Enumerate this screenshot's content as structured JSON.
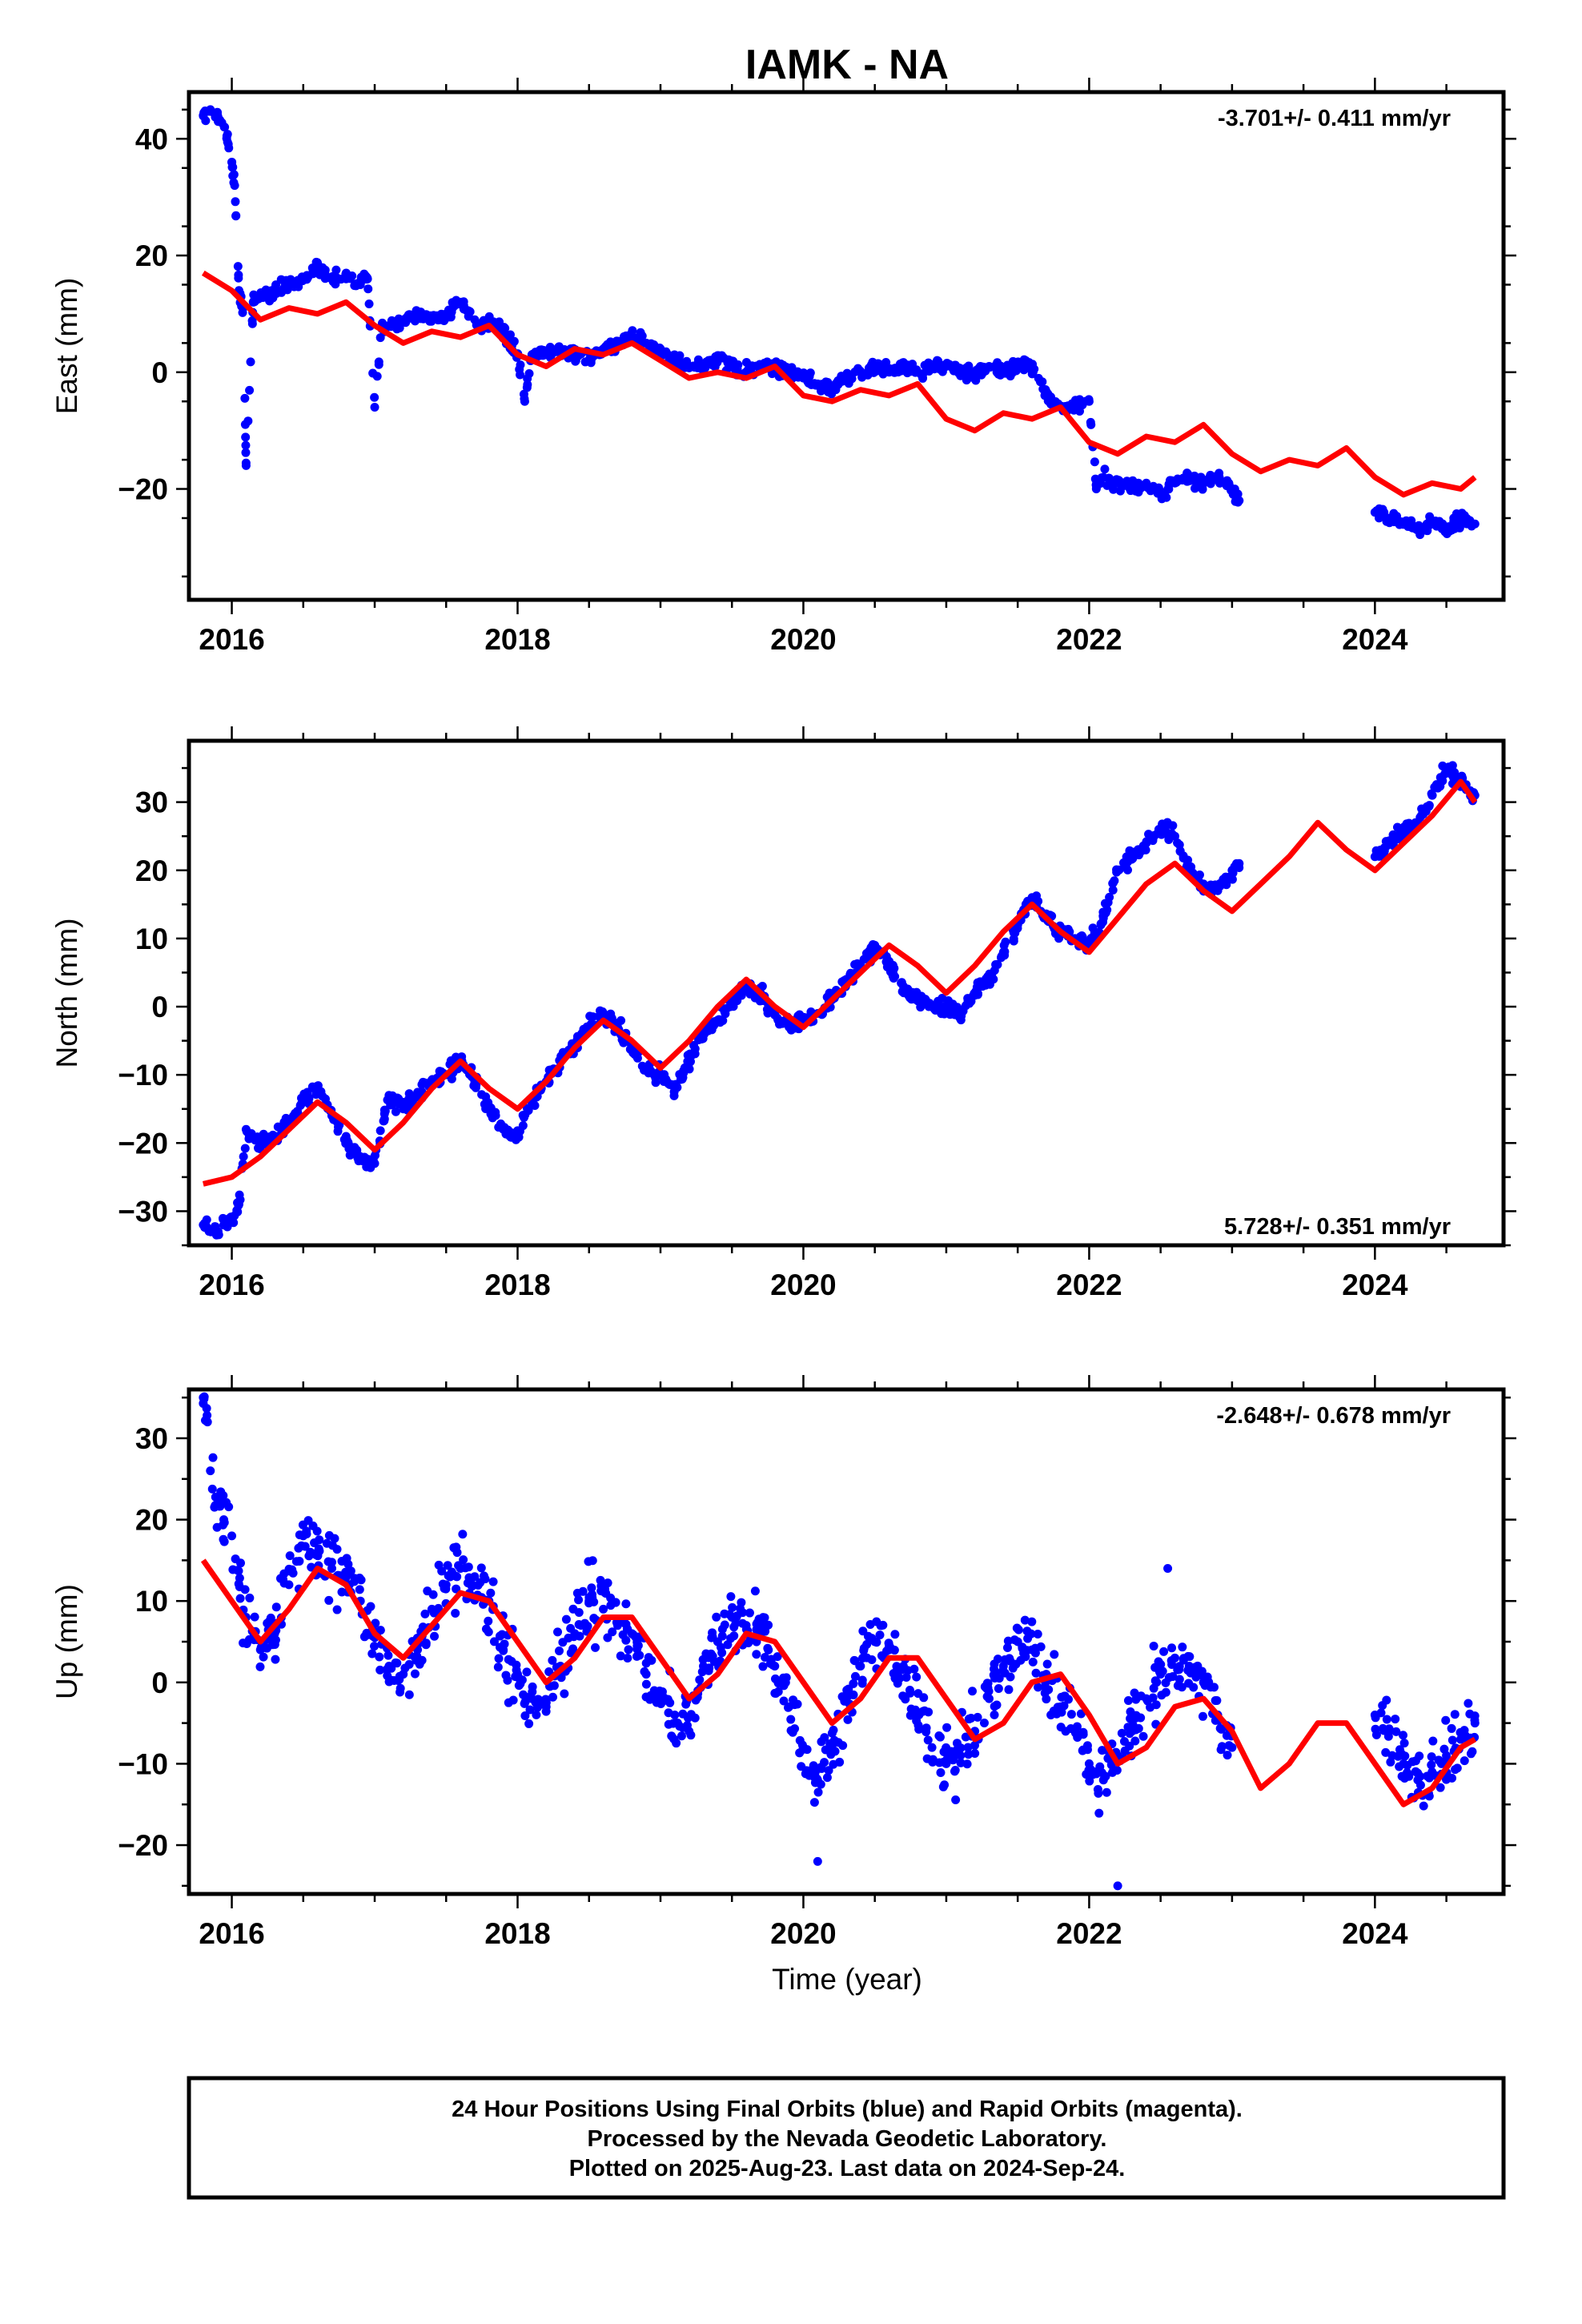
{
  "title": "IAMK - NA",
  "xlabel": "Time (year)",
  "footer": {
    "line1": "24 Hour Positions Using Final Orbits (blue) and Rapid Orbits (magenta).",
    "line2": "Processed by the Nevada Geodetic Laboratory.",
    "line3": "Plotted on 2025-Aug-23. Last data on 2024-Sep-24."
  },
  "colors": {
    "points": "#0000ff",
    "model": "#ff0000",
    "frame": "#000000"
  },
  "chart_data": [
    {
      "type": "scatter",
      "ylabel": "East (mm)",
      "rate": "-3.701+/- 0.411 mm/yr",
      "rate_position": "top-right",
      "xlim": [
        2015.7,
        2024.9
      ],
      "ylim": [
        -39,
        48
      ],
      "xticks": [
        "2016",
        "2018",
        "2020",
        "2022",
        "2024"
      ],
      "yticks": [
        "40",
        "20",
        "0",
        "−20"
      ],
      "series": [
        {
          "role": "observations",
          "marker": "dot",
          "x": [
            2015.8,
            2015.85,
            2015.9,
            2015.95,
            2016.0,
            2016.02,
            2016.05,
            2016.08,
            2016.1,
            2016.15,
            2016.2,
            2016.3,
            2016.4,
            2016.5,
            2016.6,
            2016.65,
            2016.7,
            2016.8,
            2016.9,
            2016.95,
            2017.0,
            2017.05,
            2017.1,
            2017.2,
            2017.3,
            2017.4,
            2017.5,
            2017.6,
            2017.7,
            2017.8,
            2017.9,
            2017.95,
            2018.0,
            2018.05,
            2018.1,
            2018.2,
            2018.3,
            2018.4,
            2018.5,
            2018.6,
            2018.7,
            2018.8,
            2018.9,
            2019.0,
            2019.05,
            2019.1,
            2019.2,
            2019.3,
            2019.4,
            2019.5,
            2019.6,
            2019.7,
            2019.8,
            2019.9,
            2020.0,
            2020.1,
            2020.2,
            2020.3,
            2020.4,
            2020.5,
            2020.6,
            2020.7,
            2020.8,
            2020.9,
            2021.0,
            2021.1,
            2021.2,
            2021.3,
            2021.4,
            2021.5,
            2021.6,
            2021.7,
            2021.8,
            2021.9,
            2022.0,
            2022.05,
            2022.1,
            2022.15,
            2022.2,
            2022.3,
            2022.4,
            2022.5,
            2022.6,
            2022.7,
            2022.8,
            2022.9,
            2022.95,
            2023.0,
            2023.05,
            2024.0,
            2024.1,
            2024.2,
            2024.3,
            2024.4,
            2024.5,
            2024.6,
            2024.7
          ],
          "y": [
            44,
            45,
            44,
            42,
            36,
            32,
            14,
            11,
            -16,
            12,
            13,
            14,
            15,
            16,
            18,
            17,
            16,
            16,
            15,
            16,
            -6,
            8,
            8,
            9,
            10,
            9,
            10,
            12,
            9,
            8,
            7,
            5,
            3,
            -5,
            3,
            3,
            4,
            3,
            2,
            4,
            5,
            6,
            5,
            4,
            3,
            2,
            1,
            1,
            2,
            1,
            0,
            1,
            1,
            0,
            -1,
            -2,
            -3,
            -1,
            0,
            1,
            0,
            1,
            0,
            1,
            1,
            0,
            0,
            1,
            0,
            1,
            1,
            -4,
            -6,
            -6,
            -5,
            -20,
            -18,
            -19,
            -19,
            -20,
            -19,
            -21,
            -19,
            -18,
            -19,
            -18,
            -19,
            -20,
            -22,
            -24,
            -25,
            -26,
            -27,
            -26,
            -27,
            -25,
            -26
          ]
        },
        {
          "role": "model",
          "marker": "line",
          "x": [
            2015.8,
            2016.0,
            2016.2,
            2016.4,
            2016.6,
            2016.8,
            2017.0,
            2017.2,
            2017.4,
            2017.6,
            2017.8,
            2018.0,
            2018.2,
            2018.4,
            2018.6,
            2018.8,
            2019.0,
            2019.2,
            2019.4,
            2019.6,
            2019.8,
            2020.0,
            2020.2,
            2020.4,
            2020.6,
            2020.8,
            2021.0,
            2021.2,
            2021.4,
            2021.6,
            2021.8,
            2022.0,
            2022.2,
            2022.4,
            2022.6,
            2022.8,
            2023.0,
            2023.2,
            2023.4,
            2023.6,
            2023.8,
            2024.0,
            2024.2,
            2024.4,
            2024.6,
            2024.7
          ],
          "y": [
            17,
            14,
            9,
            11,
            10,
            12,
            8,
            5,
            7,
            6,
            8,
            3,
            1,
            4,
            3,
            5,
            2,
            -1,
            0,
            -1,
            1,
            -4,
            -5,
            -3,
            -4,
            -2,
            -8,
            -10,
            -7,
            -8,
            -6,
            -12,
            -14,
            -11,
            -12,
            -9,
            -14,
            -17,
            -15,
            -16,
            -13,
            -18,
            -21,
            -19,
            -20,
            -18
          ]
        }
      ]
    },
    {
      "type": "scatter",
      "ylabel": "North (mm)",
      "rate": "5.728+/- 0.351 mm/yr",
      "rate_position": "bottom-right",
      "xlim": [
        2015.7,
        2024.9
      ],
      "ylim": [
        -35,
        39
      ],
      "xticks": [
        "2016",
        "2018",
        "2020",
        "2022",
        "2024"
      ],
      "yticks": [
        "30",
        "20",
        "10",
        "0",
        "−10",
        "−20",
        "−30"
      ],
      "series": [
        {
          "role": "observations",
          "marker": "dot",
          "x": [
            2015.8,
            2015.9,
            2016.0,
            2016.05,
            2016.1,
            2016.2,
            2016.3,
            2016.4,
            2016.5,
            2016.6,
            2016.7,
            2016.8,
            2016.9,
            2017.0,
            2017.1,
            2017.2,
            2017.3,
            2017.4,
            2017.5,
            2017.6,
            2017.7,
            2017.8,
            2017.9,
            2018.0,
            2018.1,
            2018.2,
            2018.3,
            2018.4,
            2018.5,
            2018.6,
            2018.7,
            2018.8,
            2018.9,
            2019.0,
            2019.1,
            2019.2,
            2019.3,
            2019.4,
            2019.5,
            2019.6,
            2019.7,
            2019.8,
            2019.9,
            2020.0,
            2020.1,
            2020.2,
            2020.3,
            2020.4,
            2020.5,
            2020.6,
            2020.7,
            2020.8,
            2020.9,
            2021.0,
            2021.1,
            2021.2,
            2021.3,
            2021.4,
            2021.5,
            2021.6,
            2021.7,
            2021.8,
            2021.9,
            2022.0,
            2022.1,
            2022.2,
            2022.3,
            2022.4,
            2022.5,
            2022.6,
            2022.7,
            2022.8,
            2022.9,
            2023.0,
            2023.05,
            2024.0,
            2024.1,
            2024.2,
            2024.3,
            2024.4,
            2024.5,
            2024.6,
            2024.7
          ],
          "y": [
            -32,
            -33,
            -31,
            -29,
            -18,
            -20,
            -19,
            -17,
            -14,
            -12,
            -16,
            -20,
            -22,
            -23,
            -13,
            -15,
            -13,
            -11,
            -10,
            -8,
            -11,
            -15,
            -18,
            -19,
            -14,
            -11,
            -8,
            -6,
            -3,
            -1,
            -3,
            -6,
            -9,
            -10,
            -12,
            -8,
            -4,
            -2,
            1,
            3,
            2,
            -1,
            -3,
            -2,
            -1,
            1,
            4,
            6,
            9,
            6,
            3,
            1,
            0,
            0,
            -1,
            2,
            4,
            8,
            12,
            16,
            13,
            11,
            10,
            9,
            13,
            20,
            22,
            24,
            26,
            25,
            20,
            18,
            17,
            20,
            21,
            22,
            24,
            26,
            27,
            31,
            35,
            33,
            31
          ],
          "note": "observations"
        },
        {
          "role": "model",
          "marker": "line",
          "x": [
            2015.8,
            2016.0,
            2016.2,
            2016.4,
            2016.6,
            2016.8,
            2017.0,
            2017.2,
            2017.4,
            2017.6,
            2017.8,
            2018.0,
            2018.2,
            2018.4,
            2018.6,
            2018.8,
            2019.0,
            2019.2,
            2019.4,
            2019.6,
            2019.8,
            2020.0,
            2020.2,
            2020.4,
            2020.6,
            2020.8,
            2021.0,
            2021.2,
            2021.4,
            2021.6,
            2021.8,
            2022.0,
            2022.2,
            2022.4,
            2022.6,
            2022.8,
            2023.0,
            2023.2,
            2023.4,
            2023.6,
            2023.8,
            2024.0,
            2024.2,
            2024.4,
            2024.6,
            2024.7
          ],
          "y": [
            -26,
            -25,
            -22,
            -18,
            -14,
            -17,
            -21,
            -17,
            -12,
            -8,
            -12,
            -15,
            -11,
            -6,
            -2,
            -5,
            -9,
            -5,
            0,
            4,
            0,
            -3,
            1,
            5,
            9,
            6,
            2,
            6,
            11,
            15,
            11,
            8,
            13,
            18,
            21,
            17,
            14,
            18,
            22,
            27,
            23,
            20,
            24,
            28,
            33,
            30
          ]
        }
      ]
    },
    {
      "type": "scatter",
      "ylabel": "Up (mm)",
      "rate": "-2.648+/- 0.678 mm/yr",
      "rate_position": "top-right",
      "xlim": [
        2015.7,
        2024.9
      ],
      "ylim": [
        -26,
        36
      ],
      "xticks": [
        "2016",
        "2018",
        "2020",
        "2022",
        "2024"
      ],
      "yticks": [
        "30",
        "20",
        "10",
        "0",
        "−10",
        "−20"
      ],
      "series": [
        {
          "role": "observations",
          "marker": "dot",
          "x": [
            2015.8,
            2015.85,
            2015.9,
            2016.0,
            2016.1,
            2016.2,
            2016.3,
            2016.4,
            2016.5,
            2016.6,
            2016.7,
            2016.8,
            2016.9,
            2017.0,
            2017.1,
            2017.2,
            2017.3,
            2017.4,
            2017.5,
            2017.6,
            2017.7,
            2017.8,
            2017.9,
            2018.0,
            2018.1,
            2018.2,
            2018.3,
            2018.4,
            2018.5,
            2018.6,
            2018.7,
            2018.8,
            2018.9,
            2019.0,
            2019.1,
            2019.2,
            2019.3,
            2019.4,
            2019.5,
            2019.6,
            2019.7,
            2019.8,
            2019.9,
            2020.0,
            2020.1,
            2020.2,
            2020.3,
            2020.4,
            2020.5,
            2020.6,
            2020.7,
            2020.8,
            2020.9,
            2021.0,
            2021.1,
            2021.2,
            2021.3,
            2021.4,
            2021.5,
            2021.6,
            2021.7,
            2021.8,
            2021.9,
            2022.0,
            2022.1,
            2022.2,
            2022.3,
            2022.4,
            2022.5,
            2022.6,
            2022.7,
            2022.8,
            2022.9,
            2023.0,
            2024.0,
            2024.1,
            2024.2,
            2024.3,
            2024.4,
            2024.5,
            2024.6,
            2024.7
          ],
          "y": [
            35,
            26,
            22,
            18,
            8,
            4,
            6,
            12,
            18,
            16,
            14,
            13,
            10,
            6,
            2,
            1,
            4,
            9,
            12,
            14,
            13,
            10,
            4,
            1,
            -2,
            -3,
            2,
            6,
            10,
            9,
            7,
            6,
            1,
            -2,
            -4,
            -6,
            2,
            5,
            8,
            7,
            6,
            2,
            -3,
            -8,
            -12,
            -8,
            -2,
            2,
            5,
            4,
            2,
            -4,
            -8,
            -10,
            -9,
            -6,
            -2,
            2,
            5,
            4,
            1,
            -3,
            -6,
            -10,
            -12,
            -9,
            -6,
            -2,
            1,
            3,
            2,
            0,
            -4,
            -8,
            -4,
            -6,
            -10,
            -12,
            -11,
            -9,
            -7,
            -5
          ],
          "extremes": [
            -22,
            -25,
            32,
            16,
            14
          ]
        },
        {
          "role": "model",
          "marker": "line",
          "x": [
            2015.8,
            2016.0,
            2016.2,
            2016.4,
            2016.6,
            2016.8,
            2017.0,
            2017.2,
            2017.4,
            2017.6,
            2017.8,
            2018.0,
            2018.2,
            2018.4,
            2018.6,
            2018.8,
            2019.0,
            2019.2,
            2019.4,
            2019.6,
            2019.8,
            2020.0,
            2020.2,
            2020.4,
            2020.6,
            2020.8,
            2021.0,
            2021.2,
            2021.4,
            2021.6,
            2021.8,
            2022.0,
            2022.2,
            2022.4,
            2022.6,
            2022.8,
            2023.0,
            2023.2,
            2023.4,
            2023.6,
            2023.8,
            2024.0,
            2024.2,
            2024.4,
            2024.6,
            2024.7
          ],
          "y": [
            15,
            10,
            5,
            9,
            14,
            12,
            6,
            3,
            7,
            11,
            10,
            5,
            0,
            3,
            8,
            8,
            3,
            -2,
            1,
            6,
            5,
            0,
            -5,
            -2,
            3,
            3,
            -2,
            -7,
            -5,
            0,
            1,
            -4,
            -10,
            -8,
            -3,
            -2,
            -6,
            -13,
            -10,
            -5,
            -5,
            -10,
            -15,
            -13,
            -8,
            -7
          ]
        }
      ]
    }
  ]
}
